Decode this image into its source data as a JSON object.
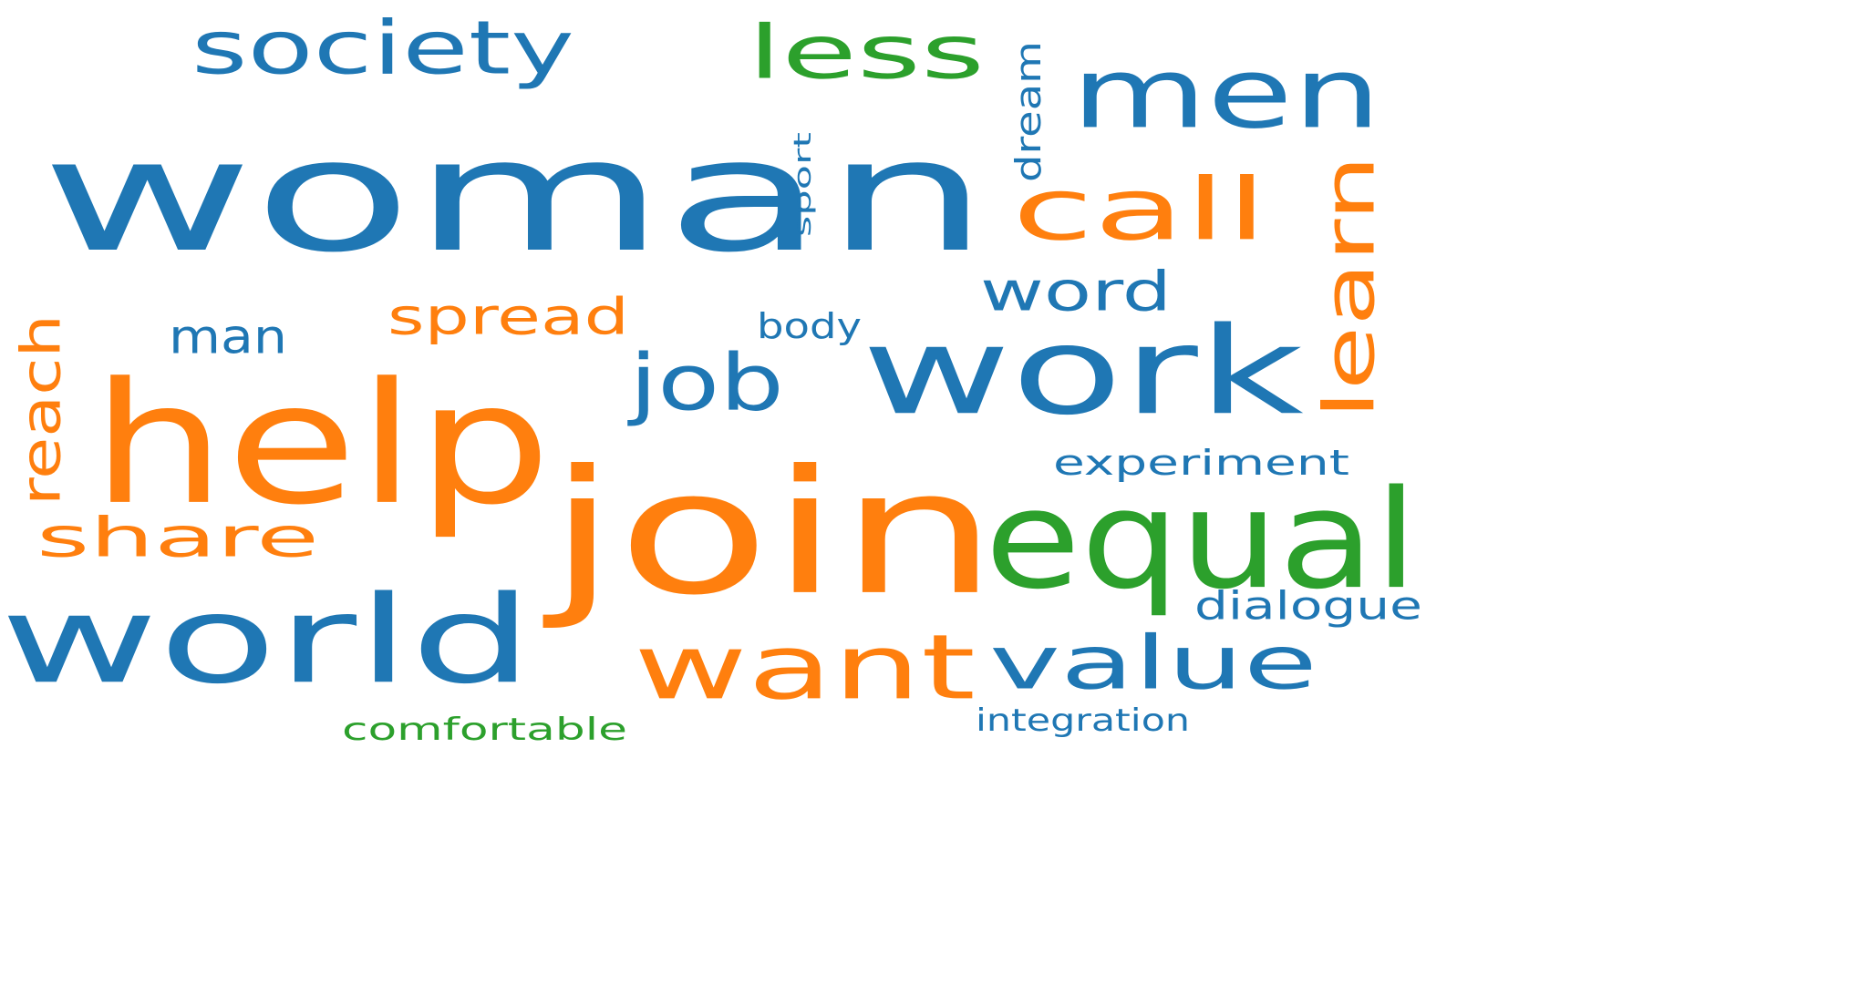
{
  "colors": {
    "blue": "#1f77b4",
    "orange": "#ff7f0e",
    "green": "#2ca02c"
  },
  "words": [
    {
      "text": "woman",
      "color": "blue"
    },
    {
      "text": "men",
      "color": "blue"
    },
    {
      "text": "work",
      "color": "blue"
    },
    {
      "text": "help",
      "color": "orange"
    },
    {
      "text": "join",
      "color": "orange"
    },
    {
      "text": "world",
      "color": "blue"
    },
    {
      "text": "equal",
      "color": "green"
    },
    {
      "text": "want",
      "color": "orange"
    },
    {
      "text": "value",
      "color": "blue"
    },
    {
      "text": "call",
      "color": "orange"
    },
    {
      "text": "less",
      "color": "green"
    },
    {
      "text": "society",
      "color": "blue"
    },
    {
      "text": "learn",
      "color": "orange"
    },
    {
      "text": "share",
      "color": "orange"
    },
    {
      "text": "word",
      "color": "blue"
    },
    {
      "text": "job",
      "color": "blue"
    },
    {
      "text": "spread",
      "color": "orange"
    },
    {
      "text": "man",
      "color": "blue"
    },
    {
      "text": "reach",
      "color": "orange"
    },
    {
      "text": "dream",
      "color": "blue"
    },
    {
      "text": "experiment",
      "color": "blue"
    },
    {
      "text": "dialogue",
      "color": "blue"
    },
    {
      "text": "body",
      "color": "blue"
    },
    {
      "text": "comfortable",
      "color": "green"
    },
    {
      "text": "integration",
      "color": "blue"
    },
    {
      "text": "sport",
      "color": "blue"
    }
  ]
}
